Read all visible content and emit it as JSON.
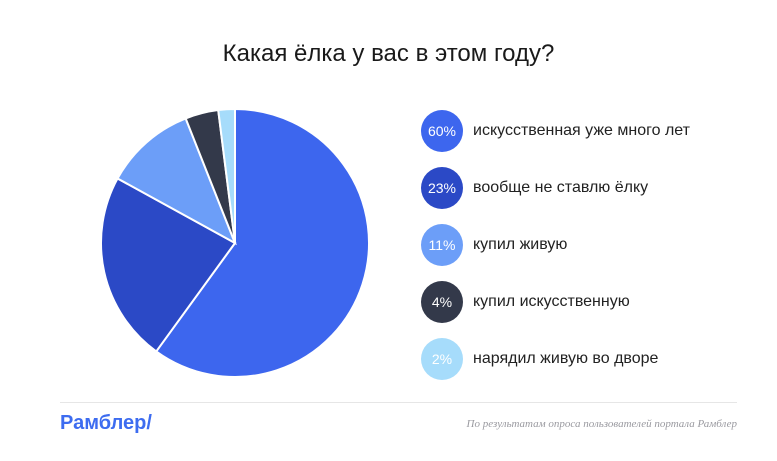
{
  "chart_data": {
    "type": "pie",
    "title": "Какая ёлка у вас в этом году?",
    "slices": [
      {
        "label": "искусственная уже много лет",
        "percent_label": "60%",
        "value": 60,
        "color": "#3d66ee"
      },
      {
        "label": "вообще не ставлю ёлку",
        "percent_label": "23%",
        "value": 23,
        "color": "#2b49c6"
      },
      {
        "label": "купил живую",
        "percent_label": "11%",
        "value": 11,
        "color": "#6c9ef8"
      },
      {
        "label": "купил искусственную",
        "percent_label": "4%",
        "value": 4,
        "color": "#33394a"
      },
      {
        "label": "нарядил живую во дворе",
        "percent_label": "2%",
        "value": 2,
        "color": "#a6dcfb"
      }
    ],
    "legend_placement": "right"
  },
  "footer": {
    "logo": "Рамблер/",
    "note": "По результатам опроса пользователей портала Рамблер"
  }
}
